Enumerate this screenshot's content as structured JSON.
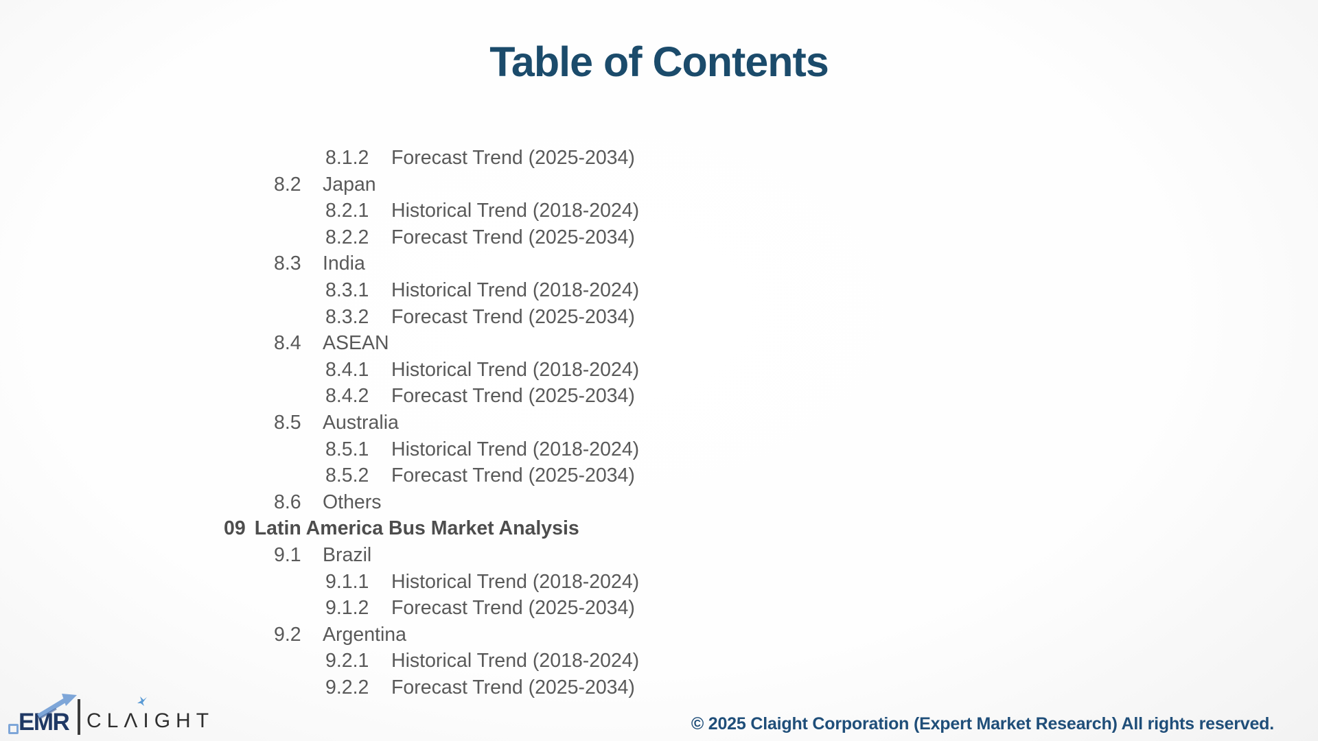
{
  "title": "Table of Contents",
  "toc": {
    "entries": [
      {
        "level": 3,
        "number": "8.1.2",
        "label": "Forecast Trend (2025-2034)"
      },
      {
        "level": 2,
        "number": "8.2",
        "label": "Japan"
      },
      {
        "level": 3,
        "number": "8.2.1",
        "label": "Historical Trend (2018-2024)"
      },
      {
        "level": 3,
        "number": "8.2.2",
        "label": "Forecast Trend (2025-2034)"
      },
      {
        "level": 2,
        "number": "8.3",
        "label": "India"
      },
      {
        "level": 3,
        "number": "8.3.1",
        "label": "Historical Trend (2018-2024)"
      },
      {
        "level": 3,
        "number": "8.3.2",
        "label": "Forecast Trend (2025-2034)"
      },
      {
        "level": 2,
        "number": "8.4",
        "label": "ASEAN"
      },
      {
        "level": 3,
        "number": "8.4.1",
        "label": "Historical Trend (2018-2024)"
      },
      {
        "level": 3,
        "number": "8.4.2",
        "label": "Forecast Trend (2025-2034)"
      },
      {
        "level": 2,
        "number": "8.5",
        "label": "Australia"
      },
      {
        "level": 3,
        "number": "8.5.1",
        "label": "Historical Trend (2018-2024)"
      },
      {
        "level": 3,
        "number": "8.5.2",
        "label": "Forecast Trend (2025-2034)"
      },
      {
        "level": 2,
        "number": "8.6",
        "label": "Others"
      },
      {
        "level": 1,
        "number": "09",
        "label": "Latin America Bus Market Analysis"
      },
      {
        "level": 2,
        "number": "9.1",
        "label": "Brazil"
      },
      {
        "level": 3,
        "number": "9.1.1",
        "label": "Historical Trend (2018-2024)"
      },
      {
        "level": 3,
        "number": "9.1.2",
        "label": "Forecast Trend (2025-2034)"
      },
      {
        "level": 2,
        "number": "9.2",
        "label": "Argentina"
      },
      {
        "level": 3,
        "number": "9.2.1",
        "label": "Historical Trend (2018-2024)"
      },
      {
        "level": 3,
        "number": "9.2.2",
        "label": "Forecast Trend (2025-2034)"
      }
    ]
  },
  "footer": {
    "logo": {
      "emr": "EMR",
      "claight": "CLΛIGHT"
    },
    "copyright": "© 2025 Claight Corporation (Expert Market Research) All rights reserved."
  },
  "colors": {
    "title": "#1b4b6b",
    "toc_text": "#595959",
    "section_heading": "#4d4d4d",
    "copyright": "#1f4e79",
    "logo_navy": "#1f3864",
    "logo_blue": "#7ea6d8",
    "logo_dark": "#2f2f2f"
  }
}
